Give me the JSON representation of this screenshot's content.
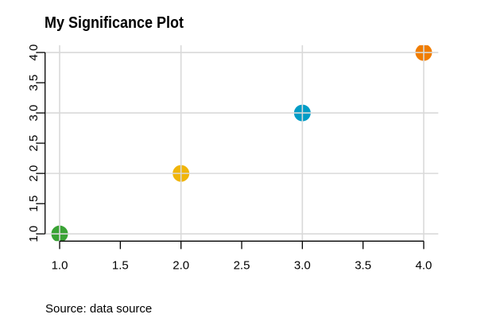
{
  "chart_data": {
    "type": "scatter",
    "title": "My Significance Plot",
    "source_note": "Source: data source",
    "points": [
      {
        "x": 1,
        "y": 1,
        "color": "#3aa335"
      },
      {
        "x": 2,
        "y": 2,
        "color": "#f0b50a"
      },
      {
        "x": 3,
        "y": 3,
        "color": "#009cc6"
      },
      {
        "x": 4,
        "y": 4,
        "color": "#f07d00"
      }
    ],
    "xlim": [
      1,
      4
    ],
    "ylim": [
      1,
      4
    ],
    "x_ticks": [
      "1.0",
      "1.5",
      "2.0",
      "2.5",
      "3.0",
      "3.5",
      "4.0"
    ],
    "y_ticks": [
      "1.0",
      "1.5",
      "2.0",
      "2.5",
      "3.0",
      "3.5",
      "4.0"
    ],
    "grid_x": [
      1,
      2,
      3,
      4
    ],
    "grid_y": [
      1,
      2,
      3,
      4
    ],
    "grid": true,
    "grid_over_points": true,
    "legend": false,
    "xlabel": "",
    "ylabel": "",
    "colors": {
      "background": "#ffffff",
      "grid": "#d9d9d9",
      "axis": "#000000",
      "text": "#000000"
    }
  }
}
